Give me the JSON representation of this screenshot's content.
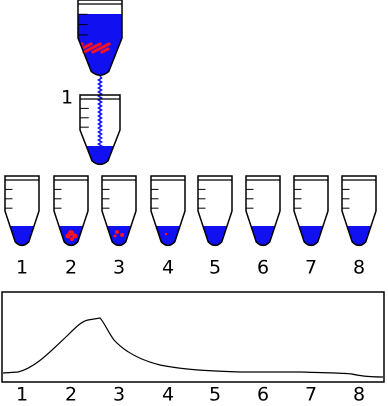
{
  "source_label": "1",
  "tube_labels": [
    "1",
    "2",
    "3",
    "4",
    "5",
    "6",
    "7",
    "8"
  ],
  "profile_labels": [
    "1",
    "2",
    "3",
    "4",
    "5",
    "6",
    "7",
    "8"
  ]
}
